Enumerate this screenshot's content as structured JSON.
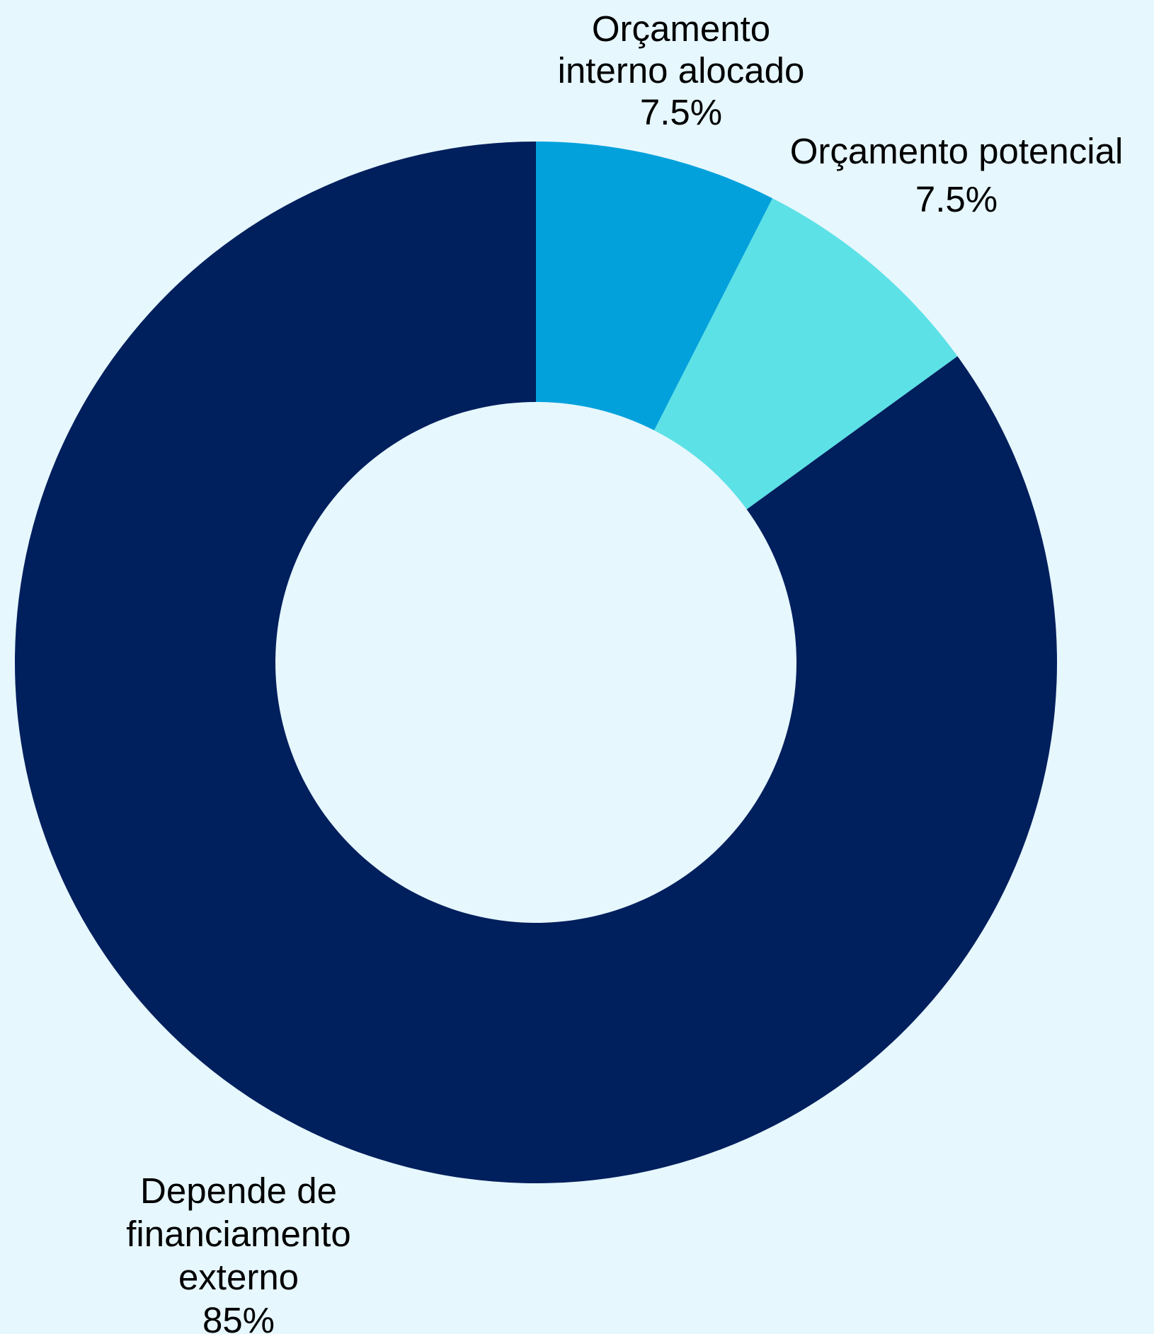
{
  "chart_data": {
    "type": "pie",
    "variant": "donut",
    "slices": [
      {
        "label_lines": [
          "Orçamento",
          "interno alocado"
        ],
        "value_label": "7.5%",
        "value": 7.5,
        "color": "#03a1dc"
      },
      {
        "label_lines": [
          "Orçamento potencial"
        ],
        "value_label": "7.5%",
        "value": 7.5,
        "color": "#5ce1e6"
      },
      {
        "label_lines": [
          "Depende de",
          "financiamento",
          "externo"
        ],
        "value_label": "85%",
        "value": 85,
        "color": "#001f5d"
      }
    ],
    "start": "top",
    "direction": "clockwise",
    "background": "#e6f7fe"
  }
}
